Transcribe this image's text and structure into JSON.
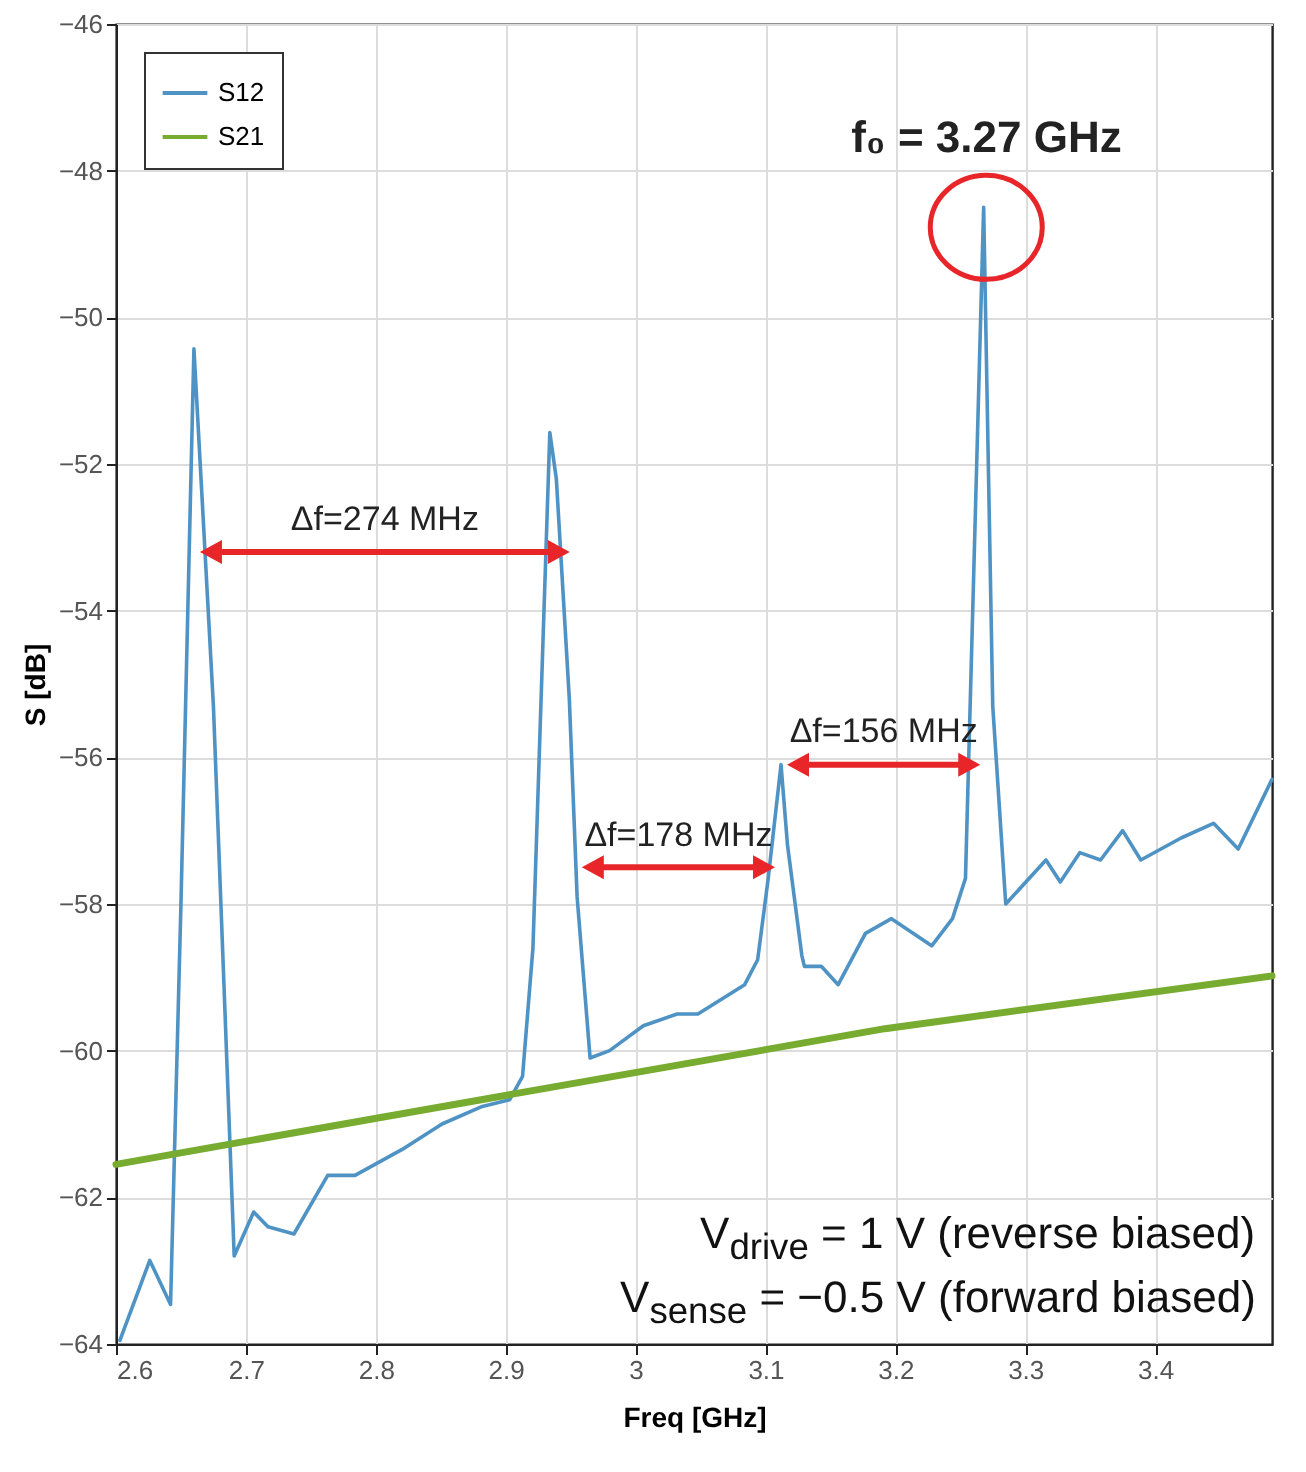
{
  "chart_data": {
    "type": "line",
    "xlabel": "Freq [GHz]",
    "ylabel": "S [dB]",
    "xlim": [
      2.6,
      3.49
    ],
    "xticks": [
      2.6,
      2.7,
      2.8,
      2.9,
      3,
      3.1,
      3.2,
      3.3,
      3.4
    ],
    "ylim": [
      -64,
      -46
    ],
    "yticks": [
      -64,
      -62,
      -60,
      -58,
      -56,
      -54,
      -52,
      -50,
      -48,
      -46
    ],
    "grid": true,
    "legend": "top left",
    "marker": "none",
    "line_style": "solid",
    "series": [
      {
        "name": "S12",
        "color": "#4f93c4",
        "x": [
          2.603,
          2.626,
          2.642,
          2.65,
          2.66,
          2.675,
          2.691,
          2.706,
          2.717,
          2.737,
          2.763,
          2.784,
          2.82,
          2.851,
          2.882,
          2.903,
          2.913,
          2.921,
          2.934,
          2.939,
          2.949,
          2.955,
          2.965,
          2.98,
          3.006,
          3.032,
          3.048,
          3.084,
          3.094,
          3.102,
          3.112,
          3.117,
          3.128,
          3.13,
          3.143,
          3.156,
          3.177,
          3.197,
          3.228,
          3.244,
          3.254,
          3.268,
          3.275,
          3.285,
          3.316,
          3.327,
          3.342,
          3.358,
          3.375,
          3.389,
          3.42,
          3.445,
          3.464,
          3.49
        ],
        "values": [
          -63.95,
          -62.86,
          -63.46,
          -58,
          -50.43,
          -55.3,
          -62.8,
          -62.2,
          -62.4,
          -62.5,
          -61.7,
          -61.7,
          -61.35,
          -61.0,
          -60.76,
          -60.67,
          -60.35,
          -58.6,
          -51.57,
          -52.2,
          -55.2,
          -57.9,
          -60.1,
          -60.0,
          -59.66,
          -59.5,
          -59.5,
          -59.1,
          -58.76,
          -57.67,
          -56.1,
          -57.2,
          -58.7,
          -58.85,
          -58.85,
          -59.1,
          -58.4,
          -58.2,
          -58.57,
          -58.2,
          -57.65,
          -48.5,
          -55.3,
          -58.0,
          -57.4,
          -57.7,
          -57.3,
          -57.4,
          -57.0,
          -57.4,
          -57.1,
          -56.9,
          -57.25,
          -56.3
        ]
      },
      {
        "name": "S21",
        "color": "#77ac30",
        "x": [
          2.6,
          2.903,
          3.192,
          3.49
        ],
        "values": [
          -61.55,
          -60.6,
          -59.7,
          -58.98
        ]
      }
    ],
    "annotations": [
      {
        "text": "Δf=274 MHz",
        "x": 2.66,
        "y": -53.2
      },
      {
        "text": "Δf=178 MHz",
        "x": 2.954,
        "y": -57.5
      },
      {
        "text": "Δf=156 MHz",
        "x": 3.112,
        "y": -56.1
      },
      {
        "text": "f₀ = 3.27 GHz",
        "x": 3.27,
        "y": -48.5
      },
      "V$_{drive}$ = 1 V (reverse biased)",
      "V$_{sense}$ = −0.5 V (forward biased)"
    ]
  }
}
